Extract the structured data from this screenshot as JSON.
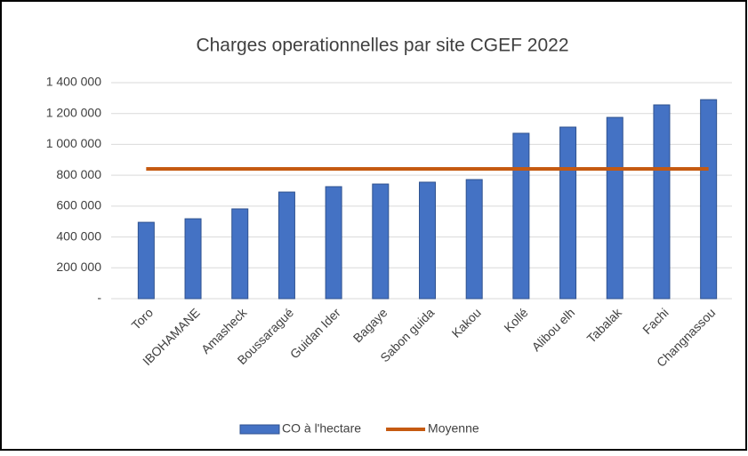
{
  "chart_data": {
    "type": "bar",
    "title": "Charges operationnelles par site  CGEF 2022",
    "categories": [
      "Toro",
      "IBOHAMANE",
      "Amasheck",
      "Boussaragué",
      "Guidan Ider",
      "Bagaye",
      "Sabon guida",
      "Kakou",
      "Kollé",
      "Alibou elh",
      "Tabalak",
      "Fachi",
      "Changnassou"
    ],
    "series": [
      {
        "name": "CO à l'hectare",
        "type": "bar",
        "color": "#4472c4",
        "values": [
          495000,
          518000,
          582000,
          691000,
          726000,
          743000,
          755000,
          772000,
          1072000,
          1112000,
          1175000,
          1256000,
          1290000
        ]
      },
      {
        "name": "Moyenne",
        "type": "line",
        "color": "#c55a11",
        "values": [
          841000,
          841000,
          841000,
          841000,
          841000,
          841000,
          841000,
          841000,
          841000,
          841000,
          841000,
          841000,
          841000
        ]
      }
    ],
    "ylim": [
      0,
      1400000
    ],
    "yticks": [
      {
        "value": 0,
        "label": "-"
      },
      {
        "value": 200000,
        "label": "200 000"
      },
      {
        "value": 400000,
        "label": "400 000"
      },
      {
        "value": 600000,
        "label": "600 000"
      },
      {
        "value": 800000,
        "label": "800 000"
      },
      {
        "value": 1000000,
        "label": "1 000 000"
      },
      {
        "value": 1200000,
        "label": "1 200 000"
      },
      {
        "value": 1400000,
        "label": "1 400 000"
      }
    ],
    "grid": true,
    "legend": "bottom"
  }
}
